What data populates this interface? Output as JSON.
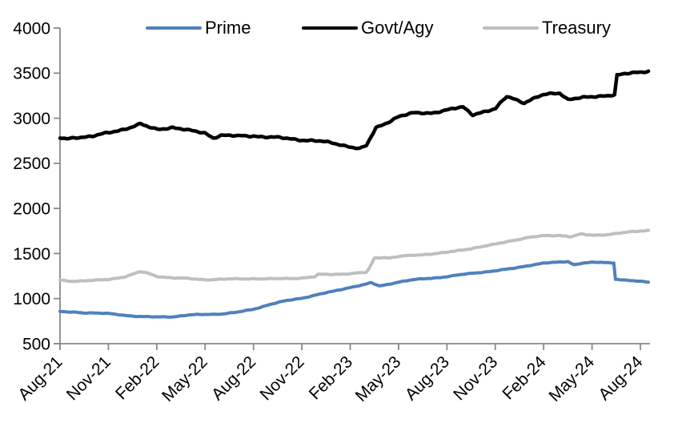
{
  "legend": [
    {
      "label": "Prime",
      "color": "#4f81bd"
    },
    {
      "label": "Govt/Agy",
      "color": "#000000"
    },
    {
      "label": "Treasury",
      "color": "#bfbfbf"
    }
  ],
  "chart_data": {
    "type": "line",
    "title": "",
    "xlabel": "",
    "ylabel": "",
    "x_unit": "months since Aug-21",
    "x_tick_labels": [
      "Aug-21",
      "Nov-21",
      "Feb-22",
      "May-22",
      "Aug-22",
      "Nov-22",
      "Feb-23",
      "May-23",
      "Aug-23",
      "Nov-23",
      "Feb-24",
      "May-24",
      "Aug-24"
    ],
    "y_ticks": [
      500,
      1000,
      1500,
      2000,
      2500,
      3000,
      3500,
      4000
    ],
    "ylim": [
      500,
      4000
    ],
    "grid": false,
    "legend_position": "top",
    "series": [
      {
        "name": "Prime",
        "color": "#4f81bd",
        "points": [
          [
            0,
            855
          ],
          [
            0.5,
            850
          ],
          [
            1,
            848
          ],
          [
            1.5,
            843
          ],
          [
            2,
            842
          ],
          [
            3,
            833
          ],
          [
            4,
            815
          ],
          [
            5,
            801
          ],
          [
            6,
            795
          ],
          [
            7,
            799
          ],
          [
            8,
            818
          ],
          [
            9,
            824
          ],
          [
            10,
            830
          ],
          [
            11,
            848
          ],
          [
            12,
            882
          ],
          [
            13,
            935
          ],
          [
            14,
            975
          ],
          [
            15,
            1005
          ],
          [
            16,
            1045
          ],
          [
            17,
            1082
          ],
          [
            18,
            1125
          ],
          [
            19,
            1160
          ],
          [
            19.3,
            1175
          ],
          [
            19.8,
            1140
          ],
          [
            20.2,
            1152
          ],
          [
            21,
            1185
          ],
          [
            22,
            1210
          ],
          [
            23,
            1226
          ],
          [
            24,
            1243
          ],
          [
            25,
            1268
          ],
          [
            26,
            1290
          ],
          [
            27,
            1307
          ],
          [
            28,
            1332
          ],
          [
            29,
            1365
          ],
          [
            30,
            1392
          ],
          [
            31,
            1405
          ],
          [
            31.5,
            1412
          ],
          [
            31.9,
            1376
          ],
          [
            32.4,
            1393
          ],
          [
            33,
            1400
          ],
          [
            33.6,
            1402
          ],
          [
            34,
            1398
          ],
          [
            34.35,
            1396
          ],
          [
            34.45,
            1218
          ],
          [
            35,
            1205
          ],
          [
            35.8,
            1192
          ],
          [
            36.5,
            1183
          ]
        ]
      },
      {
        "name": "Govt/Agy",
        "color": "#000000",
        "points": [
          [
            0,
            2780
          ],
          [
            0.4,
            2768
          ],
          [
            1,
            2790
          ],
          [
            2,
            2800
          ],
          [
            3,
            2836
          ],
          [
            4,
            2882
          ],
          [
            5,
            2935
          ],
          [
            5.5,
            2898
          ],
          [
            6,
            2876
          ],
          [
            7,
            2901
          ],
          [
            8,
            2862
          ],
          [
            9,
            2836
          ],
          [
            9.5,
            2786
          ],
          [
            10,
            2812
          ],
          [
            11,
            2800
          ],
          [
            12,
            2806
          ],
          [
            13,
            2790
          ],
          [
            14,
            2776
          ],
          [
            15,
            2762
          ],
          [
            16,
            2746
          ],
          [
            17,
            2722
          ],
          [
            18,
            2686
          ],
          [
            18.6,
            2660
          ],
          [
            19,
            2692
          ],
          [
            19.6,
            2892
          ],
          [
            20,
            2928
          ],
          [
            21,
            3020
          ],
          [
            22,
            3056
          ],
          [
            23,
            3060
          ],
          [
            24,
            3090
          ],
          [
            25,
            3122
          ],
          [
            25.6,
            3042
          ],
          [
            26,
            3062
          ],
          [
            27,
            3100
          ],
          [
            27.7,
            3238
          ],
          [
            28,
            3228
          ],
          [
            28.8,
            3172
          ],
          [
            29,
            3192
          ],
          [
            30,
            3258
          ],
          [
            31,
            3282
          ],
          [
            31.5,
            3212
          ],
          [
            32,
            3222
          ],
          [
            33,
            3232
          ],
          [
            34,
            3256
          ],
          [
            34.4,
            3266
          ],
          [
            34.55,
            3480
          ],
          [
            35,
            3490
          ],
          [
            36,
            3506
          ],
          [
            36.5,
            3525
          ]
        ]
      },
      {
        "name": "Treasury",
        "color": "#bfbfbf",
        "points": [
          [
            0,
            1203
          ],
          [
            0.7,
            1193
          ],
          [
            1,
            1196
          ],
          [
            2,
            1200
          ],
          [
            3,
            1212
          ],
          [
            4,
            1242
          ],
          [
            5,
            1298
          ],
          [
            5.4,
            1282
          ],
          [
            6,
            1247
          ],
          [
            7,
            1230
          ],
          [
            8,
            1221
          ],
          [
            9,
            1210
          ],
          [
            10,
            1214
          ],
          [
            11,
            1218
          ],
          [
            12,
            1221
          ],
          [
            13,
            1218
          ],
          [
            14,
            1223
          ],
          [
            15,
            1229
          ],
          [
            15.8,
            1240
          ],
          [
            16,
            1266
          ],
          [
            17,
            1270
          ],
          [
            18,
            1276
          ],
          [
            19,
            1290
          ],
          [
            19.15,
            1325
          ],
          [
            19.5,
            1448
          ],
          [
            20,
            1458
          ],
          [
            20.5,
            1452
          ],
          [
            21,
            1467
          ],
          [
            22,
            1480
          ],
          [
            23,
            1496
          ],
          [
            24,
            1512
          ],
          [
            25,
            1540
          ],
          [
            26,
            1572
          ],
          [
            27,
            1602
          ],
          [
            28,
            1642
          ],
          [
            29,
            1676
          ],
          [
            30,
            1696
          ],
          [
            31,
            1702
          ],
          [
            31.7,
            1686
          ],
          [
            32.3,
            1713
          ],
          [
            33,
            1702
          ],
          [
            34,
            1712
          ],
          [
            35,
            1731
          ],
          [
            36,
            1750
          ],
          [
            36.5,
            1757
          ]
        ]
      }
    ]
  }
}
